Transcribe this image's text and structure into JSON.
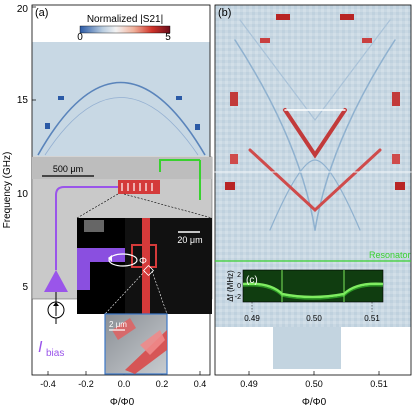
{
  "colorbar": {
    "title": "Normalized |S21|",
    "min_label": "0",
    "max_label": "5"
  },
  "panel_a": {
    "label": "(a)",
    "ylabel": "Frequency (GHz)",
    "xlabel": "Φ/Φ0",
    "yticks": [
      "5",
      "10",
      "15",
      "20"
    ],
    "xticks": [
      "-0.4",
      "-0.2",
      "0.0",
      "0.2",
      "0.4"
    ],
    "inset_scale_chip": "500 μm",
    "inset_scale_squid": "20 μm",
    "inset_scale_sem": "2 μm",
    "flux_label": "Φ",
    "bias_label": "I",
    "bias_sub": "bias"
  },
  "panel_b": {
    "label": "(b)",
    "xlabel": "Φ/Φ0",
    "xticks": [
      "0.49",
      "0.50",
      "0.51"
    ],
    "resonator_label": "Resonator"
  },
  "panel_c": {
    "label": "(c)",
    "ylabel": "Δf (MHz)",
    "yticks": [
      "-2",
      "0",
      "2"
    ],
    "xticks": [
      "0.49",
      "0.50",
      "0.51"
    ]
  },
  "colors": {
    "low": "#2b5aa6",
    "mid": "#d9e4ec",
    "high": "#b2182b",
    "resonator": "#39d12f",
    "bias": "#9a55ea"
  }
}
